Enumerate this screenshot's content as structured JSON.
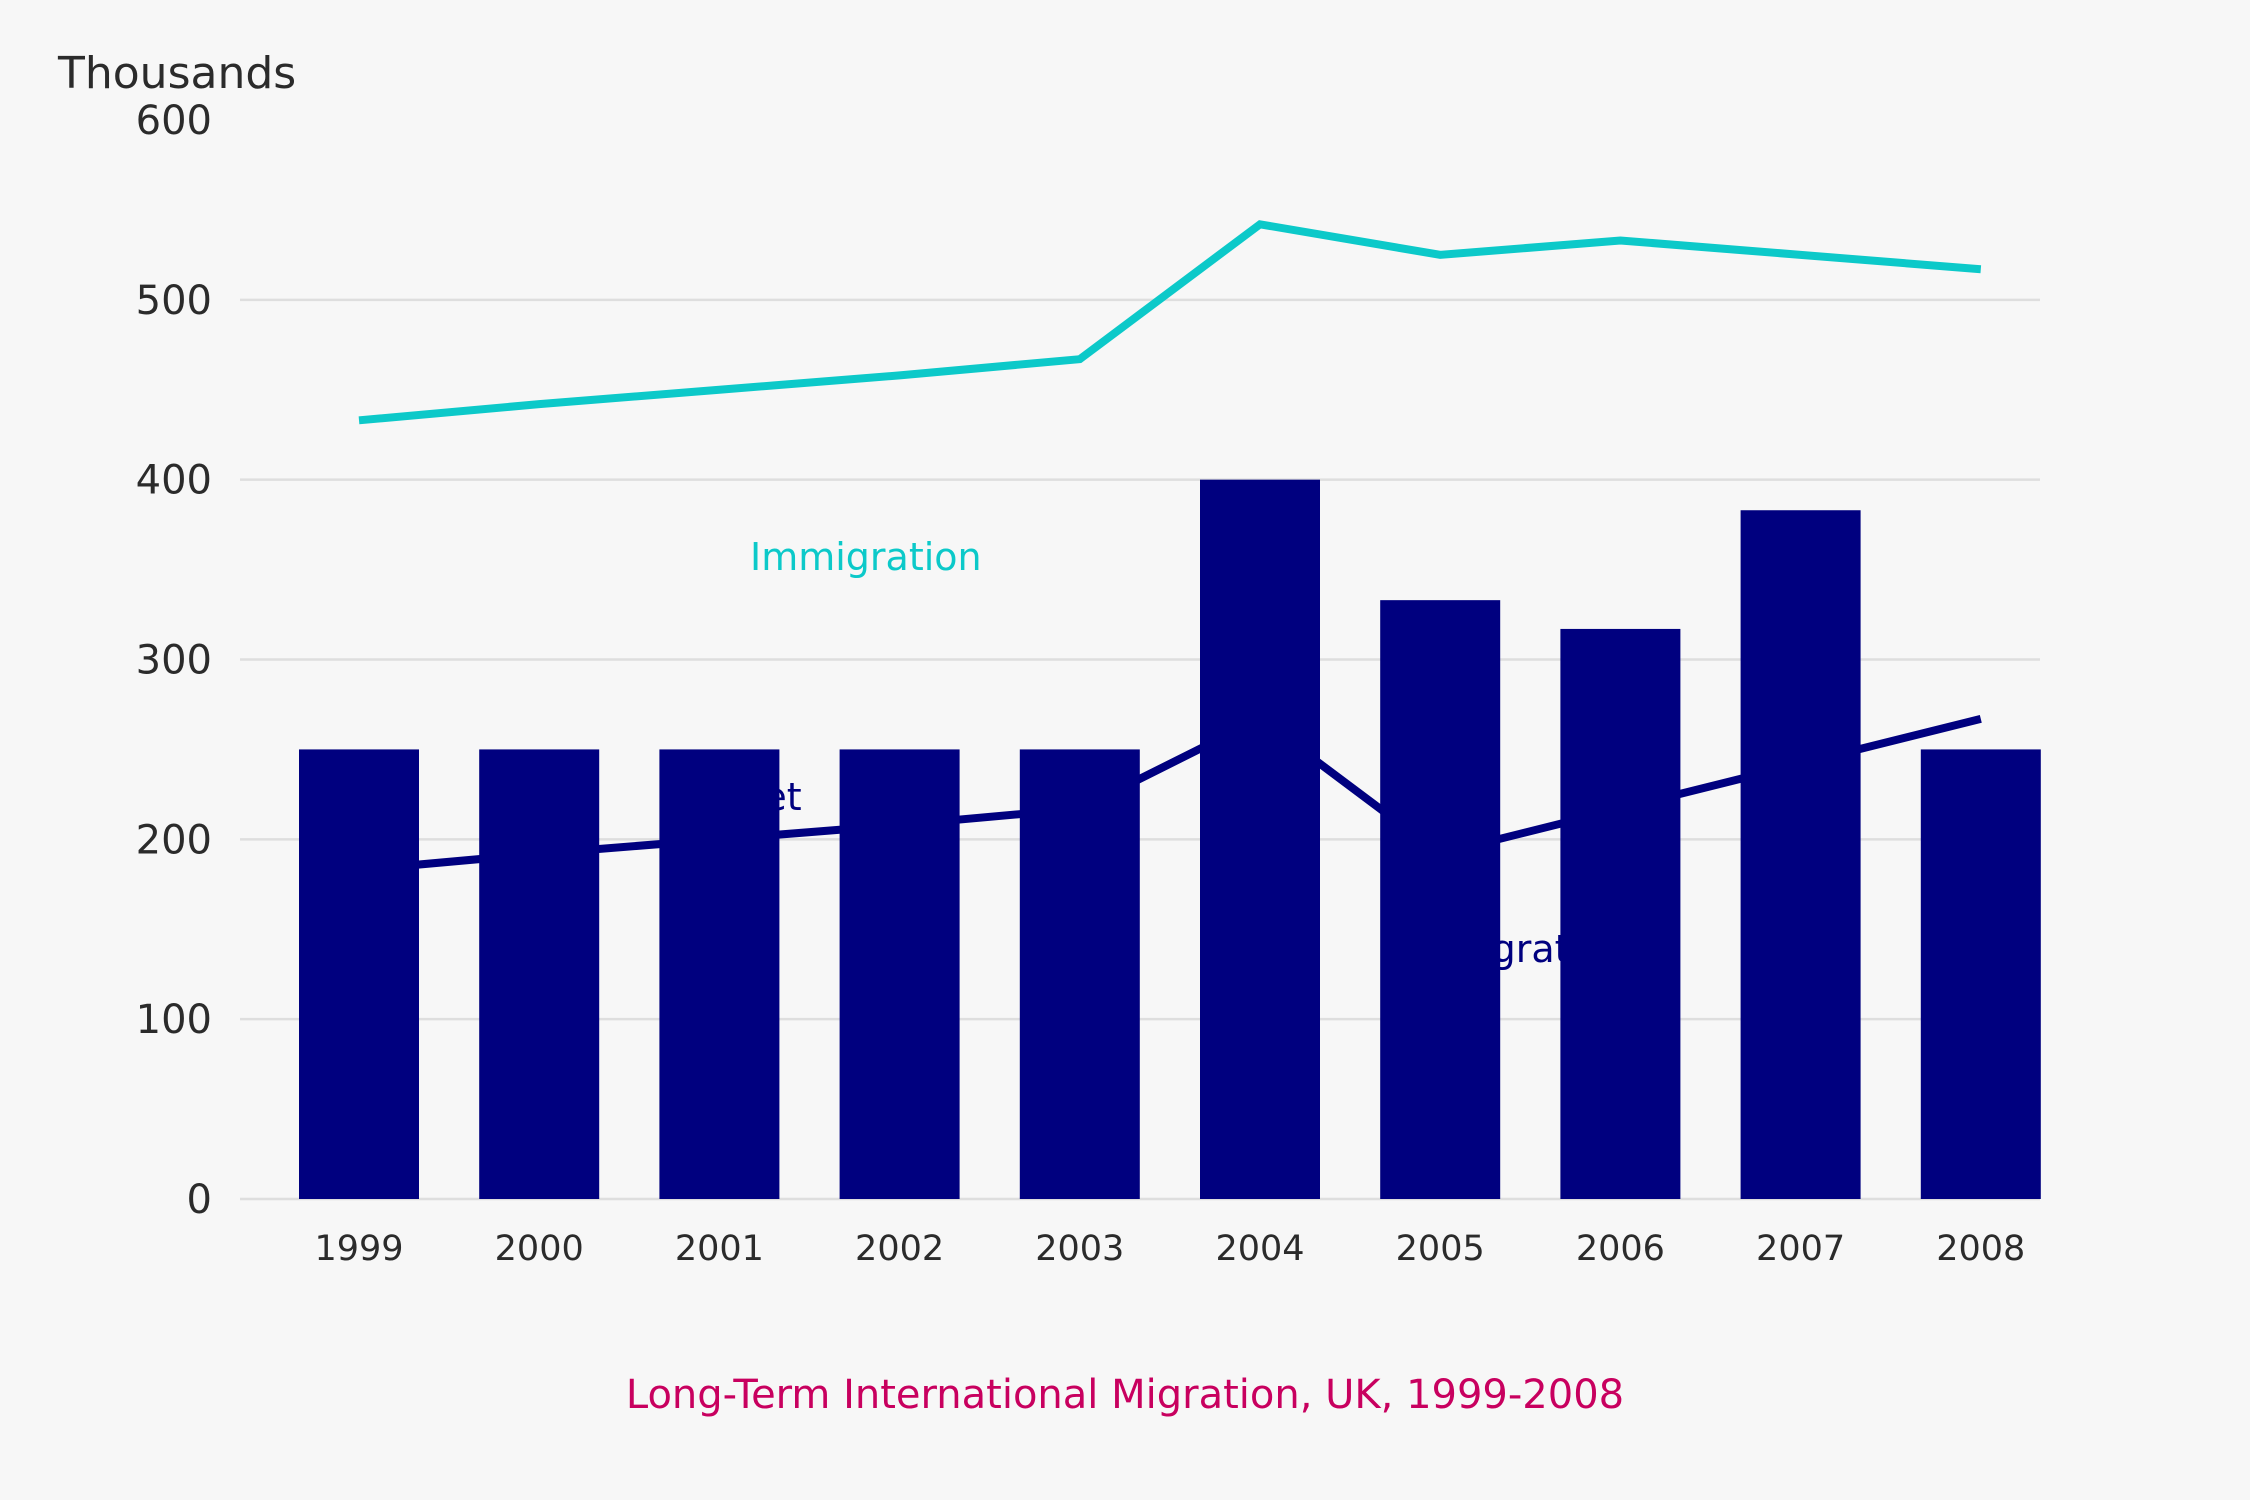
{
  "chart_data": {
    "type": "bar",
    "title": "Long-Term International Migration, UK, 1999-2008",
    "ylabel": "Thousands",
    "xlabel": "",
    "ylim": [
      0,
      600
    ],
    "yticks": [
      0,
      100,
      200,
      300,
      400,
      500,
      600
    ],
    "grid": true,
    "categories": [
      "1999",
      "2000",
      "2001",
      "2002",
      "2003",
      "2004",
      "2005",
      "2006",
      "2007",
      "2008"
    ],
    "bars": {
      "color": "#00007f",
      "values": [
        250,
        250,
        250,
        250,
        250,
        400,
        333,
        317,
        383,
        250
      ]
    },
    "lines": [
      {
        "name": "Immigration",
        "color": "#0cc9c9",
        "values": [
          433,
          442,
          450,
          458,
          467,
          542,
          525,
          533,
          525,
          517
        ]
      },
      {
        "name": "Net migration",
        "color": "#00007f",
        "values": [
          183,
          192,
          200,
          208,
          217,
          267,
          192,
          217,
          242,
          267
        ]
      }
    ],
    "annotations": [
      {
        "text": "Immigration",
        "color": "#0cc9c9"
      },
      {
        "text": "Net",
        "color": "#00007f"
      },
      {
        "text": "Emigration",
        "color": "#00007f"
      }
    ]
  }
}
